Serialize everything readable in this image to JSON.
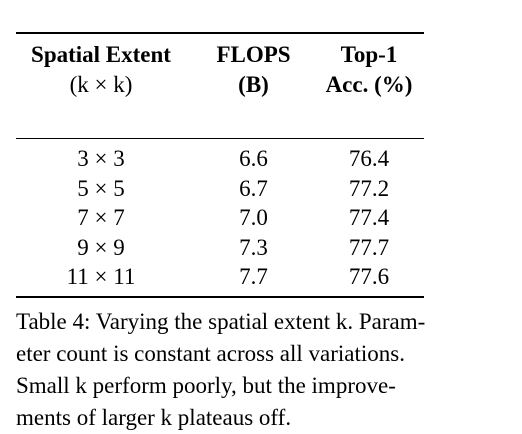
{
  "table": {
    "headers": [
      {
        "line1": "Spatial Extent",
        "line2": "(k × k)"
      },
      {
        "line1": "FLOPS",
        "line2": "(B)"
      },
      {
        "line1": "Top-1",
        "line2": "Acc. (%)"
      }
    ],
    "rows": [
      {
        "extent": "3 × 3",
        "flops": "6.6",
        "acc": "76.4"
      },
      {
        "extent": "5 × 5",
        "flops": "6.7",
        "acc": "77.2"
      },
      {
        "extent": "7 × 7",
        "flops": "7.0",
        "acc": "77.4"
      },
      {
        "extent": "9 × 9",
        "flops": "7.3",
        "acc": "77.7"
      },
      {
        "extent": "11 × 11",
        "flops": "7.7",
        "acc": "77.6"
      }
    ]
  },
  "caption": {
    "line1": "Table 4: Varying the spatial extent k. Param-",
    "line2": "eter count is constant across all variations.",
    "line3": "Small k perform poorly, but the improve-",
    "line4": "ments of larger k plateaus off."
  }
}
